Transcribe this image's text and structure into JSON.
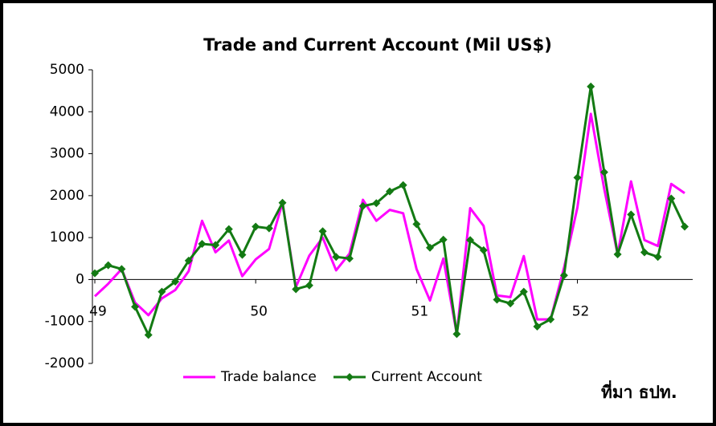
{
  "chart_data": {
    "type": "line",
    "title": "Trade and Current Account (Mil US$)",
    "categories": [
      "49",
      null,
      null,
      null,
      null,
      null,
      null,
      null,
      null,
      null,
      null,
      null,
      "50",
      null,
      null,
      null,
      null,
      null,
      null,
      null,
      null,
      null,
      null,
      null,
      "51",
      null,
      null,
      null,
      null,
      null,
      null,
      null,
      null,
      null,
      null,
      null,
      "52",
      null,
      null,
      null,
      null,
      null,
      null,
      null,
      null
    ],
    "series": [
      {
        "name": "Trade balance",
        "color": "#ff00ff",
        "values": [
          -400,
          -100,
          250,
          -550,
          -850,
          -450,
          -250,
          200,
          1400,
          650,
          930,
          80,
          480,
          730,
          1830,
          -180,
          570,
          1000,
          220,
          620,
          1900,
          1400,
          1660,
          1580,
          250,
          -500,
          500,
          -1300,
          1700,
          1280,
          -380,
          -420,
          560,
          -950,
          -950,
          280,
          1720,
          3950,
          2160,
          600,
          2340,
          940,
          800,
          2280,
          2060
        ]
      },
      {
        "name": "Current Account",
        "color": "#137a13",
        "values": [
          150,
          340,
          250,
          -650,
          -1320,
          -290,
          -50,
          450,
          850,
          820,
          1200,
          590,
          1260,
          1220,
          1830,
          -230,
          -140,
          1150,
          540,
          500,
          1750,
          1820,
          2100,
          2250,
          1320,
          760,
          950,
          -1300,
          940,
          700,
          -480,
          -570,
          -290,
          -1120,
          -950,
          100,
          2430,
          4600,
          2560,
          600,
          1550,
          650,
          540,
          1930,
          1260
        ]
      }
    ],
    "ylim": [
      -2000,
      5000
    ],
    "yticks": [
      -2000,
      -1000,
      0,
      1000,
      2000,
      3000,
      4000,
      5000
    ],
    "legend": "bottom",
    "annotation": "ที่มา ธปท."
  }
}
